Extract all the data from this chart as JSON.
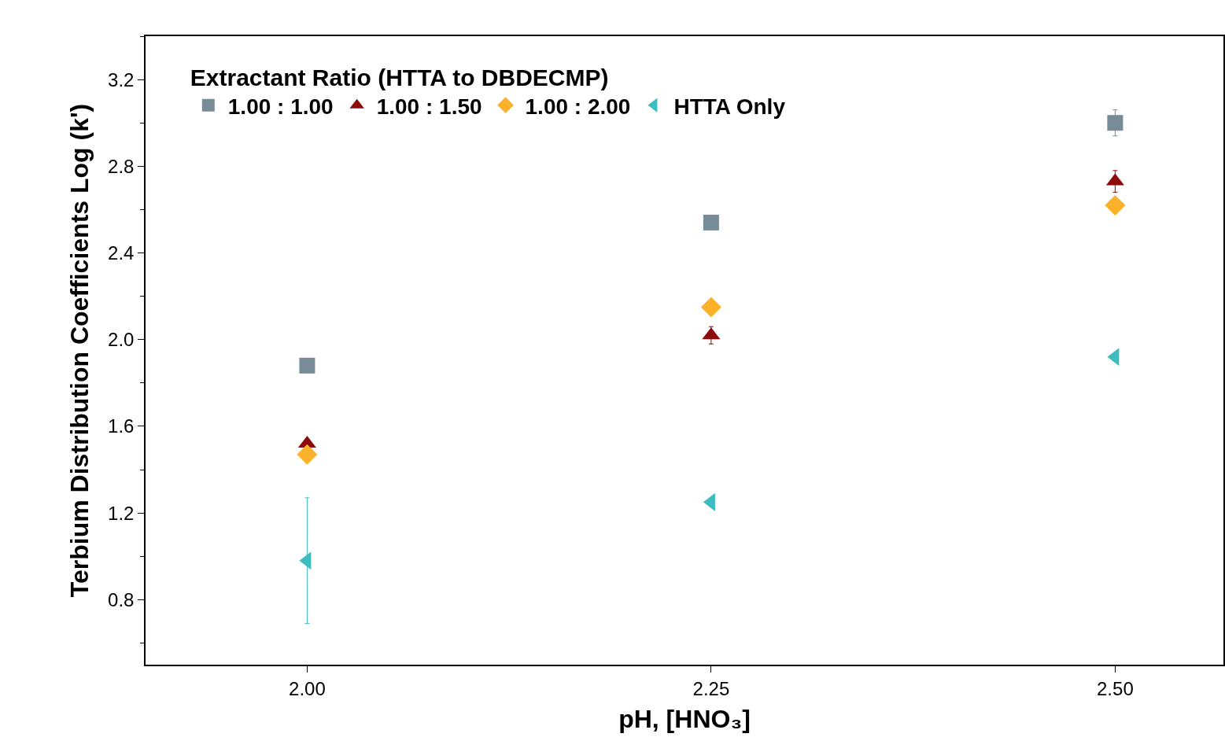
{
  "chart_data": {
    "type": "scatter",
    "xlabel": "pH, [HNO₃]",
    "ylabel": "Terbium Distribution Coefficients Log (k')",
    "legend_title": "Extractant Ratio (HTTA to DBDECMP)",
    "x": [
      2.0,
      2.25,
      2.5
    ],
    "series": [
      {
        "name": "1.00 : 1.00",
        "color": "#778c96",
        "marker": "square",
        "values": [
          1.88,
          2.54,
          3.0
        ],
        "errors": [
          null,
          null,
          0.06
        ]
      },
      {
        "name": "1.00 : 1.50",
        "color": "#8b0a0a",
        "marker": "triangle",
        "values": [
          1.52,
          2.02,
          2.73
        ],
        "errors": [
          null,
          0.04,
          0.05
        ]
      },
      {
        "name": "1.00 : 2.00",
        "color": "#fbb12a",
        "marker": "diamond",
        "values": [
          1.47,
          2.15,
          2.62
        ]
      },
      {
        "name": "HTTA Only",
        "color": "#3dbdbf",
        "marker": "triangle-left",
        "values": [
          0.98,
          1.25,
          1.92
        ],
        "errors": [
          0.29,
          null,
          null
        ]
      }
    ],
    "xlim": [
      1.9,
      2.567
    ],
    "xticks": [
      {
        "value": 2.0,
        "label": "2.00"
      },
      {
        "value": 2.25,
        "label": "2.25"
      },
      {
        "value": 2.5,
        "label": "2.50"
      }
    ],
    "ylim": [
      0.5,
      3.4
    ],
    "yticks": [
      {
        "value": 0.8,
        "label": "0.8"
      },
      {
        "value": 1.2,
        "label": "1.2"
      },
      {
        "value": 1.6,
        "label": "1.6"
      },
      {
        "value": 2.0,
        "label": "2.0"
      },
      {
        "value": 2.4,
        "label": "2.4"
      },
      {
        "value": 2.8,
        "label": "2.8"
      },
      {
        "value": 3.2,
        "label": "3.2"
      }
    ],
    "legend": "top left"
  }
}
